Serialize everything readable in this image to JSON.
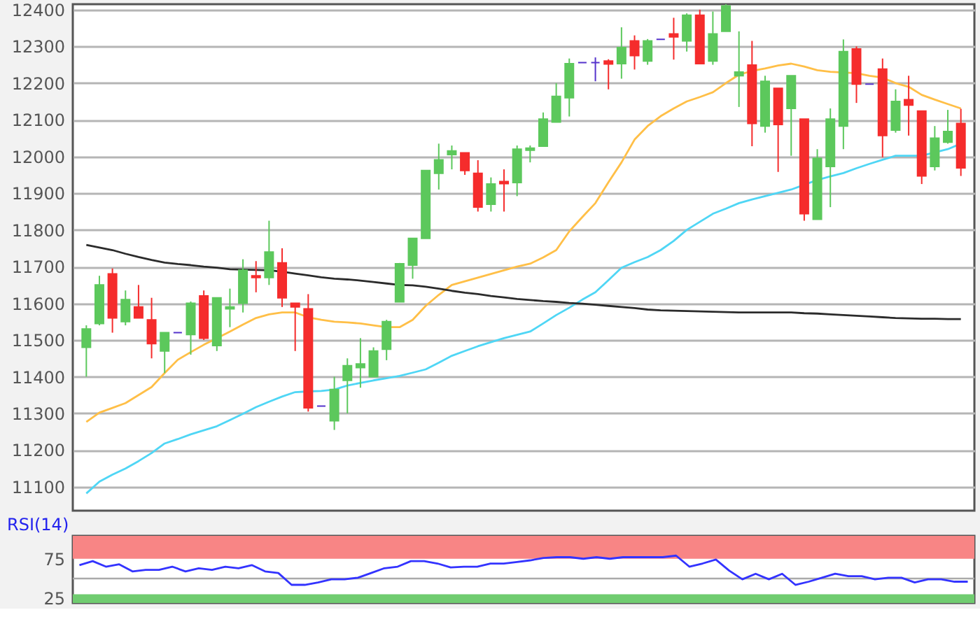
{
  "chart_data": [
    {
      "type": "candlestick",
      "categories": [
        null,
        null,
        null,
        null,
        null,
        null,
        null,
        null,
        null,
        null,
        null,
        null,
        null,
        null,
        null,
        null,
        null,
        null,
        null,
        null,
        null,
        null,
        null,
        null,
        null,
        null,
        null,
        null,
        null,
        null,
        null,
        null,
        null,
        null,
        null,
        null,
        null,
        null,
        null,
        null,
        null,
        null,
        null,
        null,
        null,
        null,
        null,
        null,
        null,
        null,
        null,
        null,
        null,
        null,
        null,
        null,
        null,
        null,
        null,
        null,
        null,
        null,
        null,
        null,
        null,
        null,
        null,
        null
      ],
      "ohlc": [
        [
          11480,
          11540,
          11400,
          11530
        ],
        [
          11545,
          11675,
          11540,
          11650
        ],
        [
          11680,
          11695,
          11520,
          11560
        ],
        [
          11550,
          11635,
          11540,
          11610
        ],
        [
          11590,
          11650,
          11560,
          11560
        ],
        [
          11555,
          11615,
          11450,
          11490
        ],
        [
          11470,
          11520,
          11410,
          11520
        ],
        [
          11520,
          11520,
          11520,
          11520
        ],
        [
          11515,
          11605,
          11460,
          11600
        ],
        [
          11620,
          11635,
          11500,
          11505
        ],
        [
          11485,
          11615,
          11470,
          11615
        ],
        [
          11585,
          11640,
          11535,
          11590
        ],
        [
          11600,
          11720,
          11575,
          11690
        ],
        [
          11675,
          11715,
          11630,
          11670
        ],
        [
          11670,
          11825,
          11650,
          11740
        ],
        [
          11710,
          11750,
          11590,
          11615
        ],
        [
          11600,
          11600,
          11470,
          11590
        ],
        [
          11585,
          11625,
          11305,
          11315
        ],
        [
          11320,
          11320,
          11320,
          11320
        ],
        [
          11280,
          11400,
          11255,
          11365
        ],
        [
          11390,
          11450,
          11300,
          11430
        ],
        [
          11425,
          11505,
          11370,
          11435
        ],
        [
          11400,
          11480,
          11400,
          11470
        ],
        [
          11475,
          11555,
          11445,
          11550
        ],
        [
          11604,
          11710,
          11604,
          11708
        ],
        [
          11704,
          11777,
          11667,
          11777
        ],
        [
          11777,
          11962,
          11777,
          11962
        ],
        [
          11954,
          12035,
          11910,
          11991
        ],
        [
          12005,
          12030,
          11965,
          12015
        ],
        [
          12010,
          12010,
          11950,
          11962
        ],
        [
          11954,
          11990,
          11850,
          11862
        ],
        [
          11870,
          11943,
          11850,
          11925
        ],
        [
          11932,
          11965,
          11850,
          11926
        ],
        [
          11929,
          12030,
          11892,
          12020
        ],
        [
          12017,
          12030,
          11984,
          12023
        ],
        [
          12028,
          12120,
          12028,
          12102
        ],
        [
          12094,
          12200,
          12094,
          12164
        ],
        [
          12160,
          12267,
          12109,
          12253
        ],
        [
          12256,
          12256,
          12256,
          12256
        ],
        [
          12256,
          12270,
          12205,
          12256
        ],
        [
          12260,
          12265,
          12183,
          12252
        ],
        [
          12253,
          12352,
          12212,
          12297
        ],
        [
          12315,
          12330,
          12237,
          12275
        ],
        [
          12260,
          12320,
          12250,
          12315
        ],
        [
          12319,
          12319,
          12319,
          12319
        ],
        [
          12334,
          12378,
          12264,
          12326
        ],
        [
          12315,
          12390,
          12286,
          12385
        ],
        [
          12385,
          12400,
          12253,
          12253
        ],
        [
          12260,
          12395,
          12250,
          12334
        ],
        [
          12341,
          12415,
          12341,
          12410
        ],
        [
          12220,
          12341,
          12135,
          12230
        ],
        [
          12249,
          12315,
          12028,
          12090
        ],
        [
          12083,
          12220,
          12065,
          12205
        ],
        [
          12186,
          12186,
          11958,
          12087
        ],
        [
          12131,
          12220,
          12002,
          12220
        ],
        [
          12102,
          12102,
          11825,
          11844
        ],
        [
          11829,
          12020,
          11829,
          11995
        ],
        [
          11973,
          12131,
          11862,
          12102
        ],
        [
          12083,
          12319,
          12020,
          12286
        ],
        [
          12293,
          12300,
          12146,
          12197
        ],
        [
          12197,
          12197,
          12197,
          12197
        ],
        [
          12238,
          12267,
          11998,
          12057
        ],
        [
          12072,
          12183,
          12065,
          12150
        ],
        [
          12155,
          12220,
          12057,
          12140
        ],
        [
          12124,
          12124,
          11925,
          11947
        ],
        [
          11973,
          12083,
          11962,
          12050
        ],
        [
          12039,
          12127,
          12035,
          12068
        ],
        [
          12090,
          12130,
          11947,
          11969
        ]
      ],
      "colors": [
        "#5cc85c",
        "#5cc85c",
        "#f52c2c",
        "#5cc85c",
        "#f52c2c",
        "#f52c2c",
        "#5cc85c",
        "#5533cc",
        "#5cc85c",
        "#f52c2c",
        "#5cc85c",
        "#5cc85c",
        "#5cc85c",
        "#f52c2c",
        "#5cc85c",
        "#f52c2c",
        "#f52c2c",
        "#f52c2c",
        "#5533cc",
        "#5cc85c",
        "#5cc85c",
        "#5cc85c",
        "#5cc85c",
        "#5cc85c",
        "#5cc85c",
        "#5cc85c",
        "#5cc85c",
        "#5cc85c",
        "#5cc85c",
        "#f52c2c",
        "#f52c2c",
        "#5cc85c",
        "#f52c2c",
        "#5cc85c",
        "#5cc85c",
        "#5cc85c",
        "#5cc85c",
        "#5cc85c",
        "#5533cc",
        "#5533cc",
        "#f52c2c",
        "#5cc85c",
        "#f52c2c",
        "#5cc85c",
        "#5533cc",
        "#f52c2c",
        "#5cc85c",
        "#f52c2c",
        "#5cc85c",
        "#5cc85c",
        "#5cc85c",
        "#f52c2c",
        "#5cc85c",
        "#f52c2c",
        "#5cc85c",
        "#f52c2c",
        "#5cc85c",
        "#5cc85c",
        "#5cc85c",
        "#f52c2c",
        "#5533cc",
        "#f52c2c",
        "#5cc85c",
        "#f52c2c",
        "#f52c2c",
        "#5cc85c",
        "#5cc85c",
        "#f52c2c"
      ],
      "series": [
        {
          "type": "line",
          "color": "#ffbf47",
          "values": [
            11277,
            11302,
            11315,
            11328,
            11350,
            11372,
            11410,
            11446,
            11467,
            11487,
            11505,
            11523,
            11542,
            11560,
            11570,
            11575,
            11575,
            11562,
            11555,
            11550,
            11548,
            11545,
            11540,
            11535,
            11535,
            11555,
            11593,
            11623,
            11650,
            11660,
            11670,
            11680,
            11690,
            11700,
            11708,
            11725,
            11745,
            11796,
            11835,
            11873,
            11930,
            11984,
            12046,
            12083,
            12110,
            12131,
            12150,
            12162,
            12175,
            12200,
            12223,
            12233,
            12240,
            12248,
            12253,
            12245,
            12235,
            12231,
            12229,
            12227,
            12220,
            12215,
            12200,
            12190,
            12168,
            12155,
            12143,
            12131
          ]
        },
        {
          "type": "line",
          "color": "#4fd6f5",
          "values": [
            11082,
            11114,
            11133,
            11150,
            11170,
            11192,
            11218,
            11230,
            11243,
            11254,
            11265,
            11282,
            11299,
            11317,
            11332,
            11346,
            11358,
            11360,
            11361,
            11365,
            11376,
            11383,
            11390,
            11396,
            11402,
            11411,
            11420,
            11438,
            11457,
            11470,
            11483,
            11494,
            11505,
            11514,
            11523,
            11545,
            11568,
            11588,
            11610,
            11630,
            11663,
            11697,
            11712,
            11726,
            11745,
            11770,
            11800,
            11822,
            11844,
            11858,
            11873,
            11883,
            11892,
            11901,
            11910,
            11923,
            11936,
            11946,
            11955,
            11968,
            11980,
            11991,
            12002,
            12002,
            12002,
            12011,
            12020,
            12035
          ]
        },
        {
          "type": "line",
          "color": "#2b2b2b",
          "values": [
            11759,
            11752,
            11745,
            11735,
            11726,
            11718,
            11711,
            11707,
            11704,
            11700,
            11697,
            11693,
            11692,
            11691,
            11690,
            11686,
            11681,
            11676,
            11671,
            11667,
            11665,
            11662,
            11658,
            11654,
            11650,
            11649,
            11645,
            11640,
            11634,
            11629,
            11625,
            11620,
            11616,
            11612,
            11609,
            11606,
            11604,
            11601,
            11599,
            11596,
            11593,
            11590,
            11587,
            11583,
            11581,
            11580,
            11579,
            11578,
            11577,
            11576,
            11575,
            11575,
            11575,
            11575,
            11575,
            11573,
            11572,
            11570,
            11568,
            11566,
            11564,
            11562,
            11560,
            11559,
            11558,
            11558,
            11557,
            11557
          ]
        }
      ],
      "ylim": [
        11035,
        12415
      ],
      "yticks": [
        11100,
        11200,
        11300,
        11400,
        11500,
        11600,
        11700,
        11800,
        11900,
        12000,
        12100,
        12200,
        12300,
        12400
      ],
      "grid": "y"
    },
    {
      "type": "line",
      "title": "RSI(14)",
      "categories": [
        null,
        null,
        null,
        null,
        null,
        null,
        null,
        null,
        null,
        null,
        null,
        null,
        null,
        null,
        null,
        null,
        null,
        null,
        null,
        null,
        null,
        null,
        null,
        null,
        null,
        null,
        null,
        null,
        null,
        null,
        null,
        null,
        null,
        null,
        null,
        null,
        null,
        null,
        null,
        null,
        null,
        null,
        null,
        null,
        null,
        null,
        null,
        null,
        null,
        null,
        null,
        null,
        null,
        null,
        null,
        null,
        null,
        null,
        null,
        null,
        null,
        null,
        null,
        null,
        null,
        null,
        null,
        null
      ],
      "series": [
        {
          "color": "#3333ff",
          "values": [
            67,
            72,
            65,
            68,
            59,
            61,
            61,
            65,
            59,
            63,
            61,
            65,
            63,
            67,
            59,
            57,
            42,
            42,
            45,
            49,
            49,
            51,
            57,
            63,
            65,
            72,
            72,
            69,
            64,
            65,
            65,
            69,
            69,
            71,
            73,
            76,
            77,
            77,
            75,
            77,
            75,
            77,
            77,
            77,
            77,
            79,
            65,
            69,
            74,
            60,
            49,
            56,
            49,
            56,
            42,
            46,
            51,
            56,
            53,
            53,
            49,
            51,
            51,
            45,
            49,
            49,
            46,
            46
          ]
        }
      ],
      "bands": [
        {
          "axis": "y",
          "from": 75,
          "to": 104,
          "color": "#f88585"
        },
        {
          "axis": "y",
          "from": 19,
          "to": 30,
          "color": "#70cc70"
        }
      ],
      "ref_lines": [
        {
          "axis": "y",
          "value": 50,
          "color": "#aaaaaa"
        }
      ],
      "ylim": [
        19,
        104
      ],
      "yticks": [
        75,
        25
      ],
      "grid": false
    }
  ]
}
